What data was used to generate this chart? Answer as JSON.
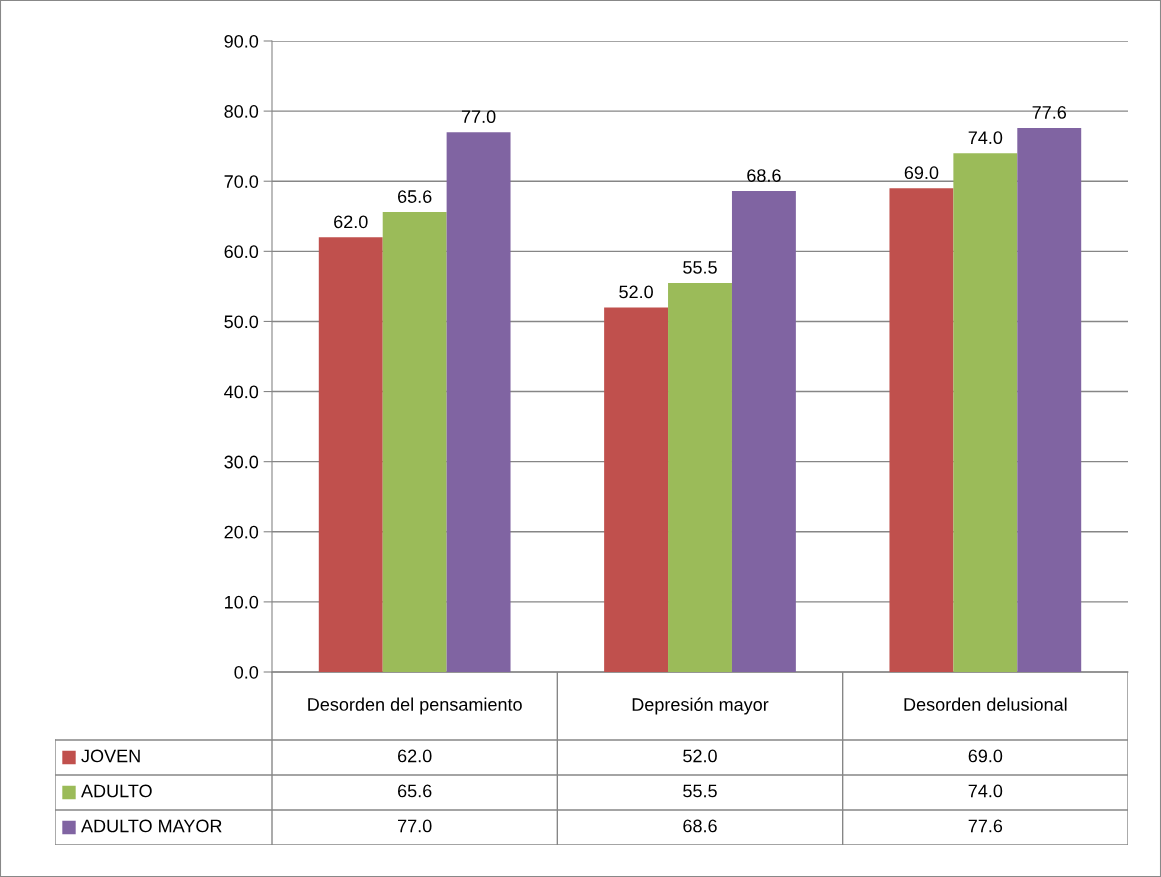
{
  "chart_data": {
    "type": "bar",
    "categories": [
      "Desorden del pensamiento",
      "Depresión mayor",
      "Desorden delusional"
    ],
    "series": [
      {
        "name": "JOVEN",
        "color": "#c0504d",
        "values": [
          62.0,
          52.0,
          69.0
        ],
        "value_labels": [
          "62.0",
          "52.0",
          "69.0"
        ]
      },
      {
        "name": "ADULTO",
        "color": "#9bbb59",
        "values": [
          65.6,
          55.5,
          74.0
        ],
        "value_labels": [
          "65.6",
          "55.5",
          "74.0"
        ]
      },
      {
        "name": "ADULTO MAYOR",
        "color": "#8064a2",
        "values": [
          77.0,
          68.6,
          77.6
        ],
        "value_labels": [
          "77.0",
          "68.6",
          "77.6"
        ]
      }
    ],
    "ylim": [
      0,
      90
    ],
    "yticks": [
      {
        "value": 0,
        "label": "0.0"
      },
      {
        "value": 10,
        "label": "10.0"
      },
      {
        "value": 20,
        "label": "20.0"
      },
      {
        "value": 30,
        "label": "30.0"
      },
      {
        "value": 40,
        "label": "40.0"
      },
      {
        "value": 50,
        "label": "50.0"
      },
      {
        "value": 60,
        "label": "60.0"
      },
      {
        "value": 70,
        "label": "70.0"
      },
      {
        "value": 80,
        "label": "80.0"
      },
      {
        "value": 90,
        "label": "90.0"
      }
    ],
    "grid": "y",
    "legend": "bottom"
  }
}
